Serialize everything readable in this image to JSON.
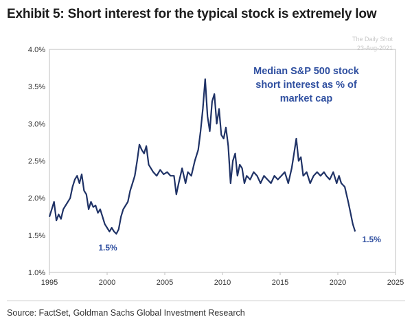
{
  "title": "Exhibit 5: Short interest for the typical stock is extremely low",
  "watermark": {
    "brand": "The Daily Shot",
    "date": "23-Aug-2021"
  },
  "source": "Source: FactSet, Goldman Sachs Global Investment Research",
  "colors": {
    "line": "#1f3266",
    "annotation": "#2f4fa0",
    "axis": "#333333",
    "frame": "#bfbfbf"
  },
  "chart_data": {
    "type": "line",
    "annotation": [
      "Median S&P 500 stock",
      "short interest as % of",
      "market cap"
    ],
    "point_labels": [
      {
        "x": 2000.3,
        "y": 1.5,
        "text": "1.5%"
      },
      {
        "x": 2021.5,
        "y": 1.5,
        "text": "1.5%"
      }
    ],
    "xlim": [
      1995,
      2025
    ],
    "ylim": [
      1.0,
      4.0
    ],
    "xticks": [
      1995,
      2000,
      2005,
      2010,
      2015,
      2020,
      2025
    ],
    "yticks": [
      1.0,
      1.5,
      2.0,
      2.5,
      3.0,
      3.5,
      4.0
    ],
    "ytick_labels": [
      "1.0%",
      "1.5%",
      "2.0%",
      "2.5%",
      "3.0%",
      "3.5%",
      "4.0%"
    ],
    "series": [
      {
        "x": [
          1995.0,
          1995.2,
          1995.4,
          1995.6,
          1995.8,
          1996.0,
          1996.2,
          1996.4,
          1996.6,
          1996.8,
          1997.0,
          1997.2,
          1997.4,
          1997.6,
          1997.8,
          1998.0,
          1998.2,
          1998.4,
          1998.6,
          1998.8,
          1999.0,
          1999.2,
          1999.4,
          1999.6,
          1999.8,
          2000.0,
          2000.2,
          2000.4,
          2000.6,
          2000.8,
          2001.0,
          2001.2,
          2001.4,
          2001.6,
          2001.8,
          2002.0,
          2002.2,
          2002.4,
          2002.6,
          2002.8,
          2003.0,
          2003.2,
          2003.4,
          2003.6,
          2003.8,
          2004.0,
          2004.3,
          2004.6,
          2004.9,
          2005.2,
          2005.5,
          2005.8,
          2006.0,
          2006.2,
          2006.5,
          2006.8,
          2007.0,
          2007.3,
          2007.6,
          2007.9,
          2008.1,
          2008.3,
          2008.5,
          2008.7,
          2008.9,
          2009.1,
          2009.3,
          2009.5,
          2009.7,
          2009.9,
          2010.1,
          2010.3,
          2010.5,
          2010.7,
          2010.9,
          2011.1,
          2011.3,
          2011.5,
          2011.7,
          2011.9,
          2012.1,
          2012.4,
          2012.7,
          2013.0,
          2013.3,
          2013.6,
          2013.9,
          2014.2,
          2014.5,
          2014.8,
          2015.1,
          2015.4,
          2015.7,
          2016.0,
          2016.2,
          2016.4,
          2016.6,
          2016.8,
          2017.0,
          2017.3,
          2017.6,
          2017.9,
          2018.2,
          2018.5,
          2018.8,
          2019.0,
          2019.3,
          2019.6,
          2019.9,
          2020.1,
          2020.3,
          2020.6,
          2020.9,
          2021.1,
          2021.3,
          2021.5
        ],
        "y": [
          1.75,
          1.85,
          1.95,
          1.7,
          1.78,
          1.72,
          1.85,
          1.9,
          1.95,
          2.0,
          2.15,
          2.25,
          2.3,
          2.2,
          2.32,
          2.1,
          2.05,
          1.85,
          1.95,
          1.88,
          1.9,
          1.8,
          1.85,
          1.75,
          1.65,
          1.6,
          1.55,
          1.6,
          1.55,
          1.52,
          1.58,
          1.75,
          1.85,
          1.9,
          1.95,
          2.1,
          2.2,
          2.3,
          2.5,
          2.72,
          2.65,
          2.6,
          2.7,
          2.45,
          2.4,
          2.35,
          2.3,
          2.38,
          2.32,
          2.35,
          2.3,
          2.3,
          2.05,
          2.2,
          2.4,
          2.2,
          2.35,
          2.3,
          2.5,
          2.65,
          2.9,
          3.2,
          3.6,
          3.1,
          2.9,
          3.3,
          3.4,
          3.0,
          3.2,
          2.85,
          2.8,
          2.95,
          2.7,
          2.2,
          2.5,
          2.6,
          2.3,
          2.45,
          2.4,
          2.2,
          2.3,
          2.25,
          2.35,
          2.3,
          2.2,
          2.3,
          2.25,
          2.2,
          2.3,
          2.25,
          2.3,
          2.35,
          2.2,
          2.4,
          2.6,
          2.8,
          2.5,
          2.55,
          2.3,
          2.35,
          2.2,
          2.3,
          2.35,
          2.3,
          2.35,
          2.3,
          2.25,
          2.35,
          2.2,
          2.3,
          2.2,
          2.15,
          1.95,
          1.8,
          1.65,
          1.55
        ]
      }
    ]
  }
}
